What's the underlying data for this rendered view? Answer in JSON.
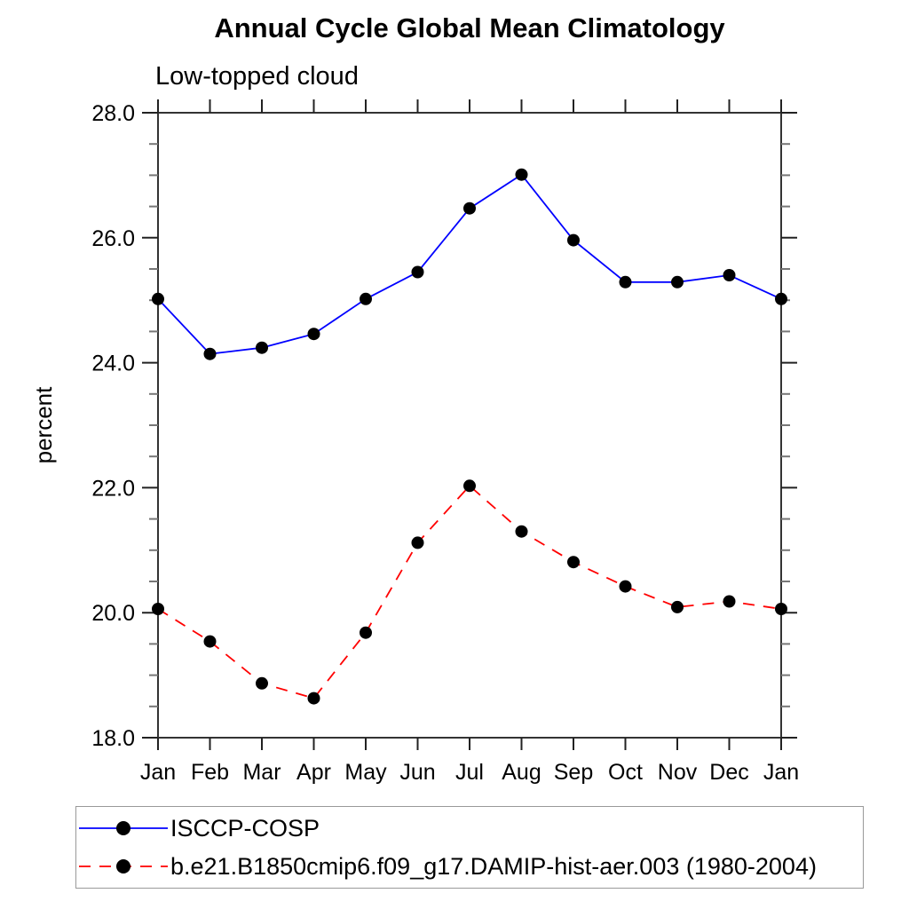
{
  "chart_data": {
    "type": "line",
    "title": "Annual Cycle Global Mean Climatology",
    "subtitle": "Low-topped cloud",
    "xlabel": "",
    "ylabel": "percent",
    "categories": [
      "Jan",
      "Feb",
      "Mar",
      "Apr",
      "May",
      "Jun",
      "Jul",
      "Aug",
      "Sep",
      "Oct",
      "Nov",
      "Dec",
      "Jan"
    ],
    "ylim": [
      18.0,
      28.0
    ],
    "y_major_ticks": [
      18.0,
      20.0,
      22.0,
      24.0,
      26.0,
      28.0
    ],
    "y_major_tick_labels": [
      "18.0",
      "20.0",
      "22.0",
      "24.0",
      "26.0",
      "28.0"
    ],
    "y_minor_step": 0.5,
    "grid": false,
    "legend_position": "bottom",
    "axis_color": "#333333",
    "series": [
      {
        "name": "ISCCP-COSP",
        "color": "#0000ff",
        "line_style": "solid",
        "marker": "circle",
        "marker_color": "#000000",
        "values": [
          25.02,
          24.14,
          24.24,
          24.46,
          25.02,
          25.45,
          26.47,
          27.01,
          25.96,
          25.29,
          25.29,
          25.4,
          25.02
        ]
      },
      {
        "name": "b.e21.B1850cmip6.f09_g17.DAMIP-hist-aer.003 (1980-2004)",
        "color": "#ff0000",
        "line_style": "dashed",
        "marker": "circle",
        "marker_color": "#000000",
        "values": [
          20.06,
          19.54,
          18.87,
          18.63,
          19.68,
          21.12,
          22.03,
          21.3,
          20.81,
          20.42,
          20.09,
          20.18,
          20.06
        ]
      }
    ]
  }
}
